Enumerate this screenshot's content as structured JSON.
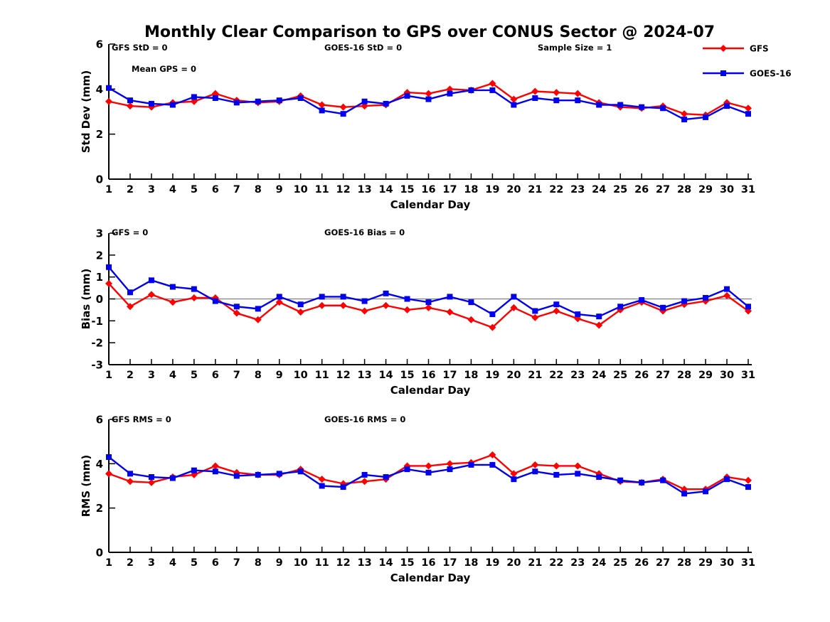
{
  "title": "Monthly Clear Comparison to GPS over CONUS Sector @ 2024-07",
  "colors": {
    "gfs": "#ff0000",
    "goes16": "#0000ee",
    "zero_line": "#808080",
    "axis": "#000000",
    "background": "#ffffff"
  },
  "legend": {
    "position": "top-right",
    "items": [
      {
        "label": "GFS",
        "color": "#ff0000",
        "marker": "diamond"
      },
      {
        "label": "GOES-16",
        "color": "#0000ee",
        "marker": "square"
      }
    ]
  },
  "chart_data": [
    {
      "type": "line",
      "name": "std-dev",
      "ylabel": "Std Dev (mm)",
      "xlabel": "Calendar Day",
      "ylim": [
        0,
        6
      ],
      "yticks": [
        0,
        2,
        4,
        6
      ],
      "grid": false,
      "zero_line": false,
      "annotations": [
        "GFS StD = 0",
        "GOES-16 StD = 0",
        "Sample Size = 1",
        "Mean GPS = 0"
      ],
      "x": [
        1,
        2,
        3,
        4,
        5,
        6,
        7,
        8,
        9,
        10,
        11,
        12,
        13,
        14,
        15,
        16,
        17,
        18,
        19,
        20,
        21,
        22,
        23,
        24,
        25,
        26,
        27,
        28,
        29,
        30,
        31
      ],
      "series": [
        {
          "name": "GFS",
          "color": "#ff0000",
          "marker": "diamond",
          "values": [
            3.45,
            3.25,
            3.2,
            3.4,
            3.45,
            3.8,
            3.5,
            3.4,
            3.45,
            3.7,
            3.3,
            3.2,
            3.25,
            3.3,
            3.85,
            3.8,
            4.0,
            3.95,
            4.25,
            3.55,
            3.9,
            3.85,
            3.8,
            3.4,
            3.2,
            3.15,
            3.25,
            2.9,
            2.85,
            3.4,
            3.15
          ]
        },
        {
          "name": "GOES-16",
          "color": "#0000ee",
          "marker": "square",
          "values": [
            4.05,
            3.5,
            3.35,
            3.3,
            3.65,
            3.6,
            3.4,
            3.45,
            3.5,
            3.6,
            3.05,
            2.9,
            3.45,
            3.35,
            3.7,
            3.55,
            3.8,
            3.95,
            3.95,
            3.3,
            3.6,
            3.5,
            3.5,
            3.3,
            3.3,
            3.2,
            3.15,
            2.65,
            2.75,
            3.25,
            2.9
          ]
        }
      ]
    },
    {
      "type": "line",
      "name": "bias",
      "ylabel": "Bias (mm)",
      "xlabel": "Calendar Day",
      "ylim": [
        -3,
        3
      ],
      "yticks": [
        -3,
        -2,
        -1,
        0,
        1,
        2,
        3
      ],
      "grid": false,
      "zero_line": true,
      "annotations": [
        "GFS = 0",
        "GOES-16 Bias = 0"
      ],
      "x": [
        1,
        2,
        3,
        4,
        5,
        6,
        7,
        8,
        9,
        10,
        11,
        12,
        13,
        14,
        15,
        16,
        17,
        18,
        19,
        20,
        21,
        22,
        23,
        24,
        25,
        26,
        27,
        28,
        29,
        30,
        31
      ],
      "series": [
        {
          "name": "GFS",
          "color": "#ff0000",
          "marker": "diamond",
          "values": [
            0.7,
            -0.35,
            0.2,
            -0.15,
            0.05,
            0.05,
            -0.65,
            -0.95,
            -0.15,
            -0.6,
            -0.3,
            -0.3,
            -0.55,
            -0.3,
            -0.5,
            -0.4,
            -0.6,
            -0.95,
            -1.3,
            -0.4,
            -0.85,
            -0.55,
            -0.9,
            -1.2,
            -0.5,
            -0.15,
            -0.55,
            -0.25,
            -0.1,
            0.15,
            -0.55
          ]
        },
        {
          "name": "GOES-16",
          "color": "#0000ee",
          "marker": "square",
          "values": [
            1.45,
            0.3,
            0.85,
            0.55,
            0.45,
            -0.1,
            -0.35,
            -0.45,
            0.1,
            -0.25,
            0.1,
            0.1,
            -0.1,
            0.25,
            0.0,
            -0.15,
            0.1,
            -0.15,
            -0.7,
            0.1,
            -0.55,
            -0.25,
            -0.7,
            -0.8,
            -0.35,
            -0.05,
            -0.4,
            -0.1,
            0.05,
            0.45,
            -0.35
          ]
        }
      ]
    },
    {
      "type": "line",
      "name": "rms",
      "ylabel": "RMS (mm)",
      "xlabel": "Calendar Day",
      "ylim": [
        0,
        6
      ],
      "yticks": [
        0,
        2,
        4,
        6
      ],
      "grid": false,
      "zero_line": false,
      "annotations": [
        "GFS RMS = 0",
        "GOES-16 RMS = 0"
      ],
      "x": [
        1,
        2,
        3,
        4,
        5,
        6,
        7,
        8,
        9,
        10,
        11,
        12,
        13,
        14,
        15,
        16,
        17,
        18,
        19,
        20,
        21,
        22,
        23,
        24,
        25,
        26,
        27,
        28,
        29,
        30,
        31
      ],
      "series": [
        {
          "name": "GFS",
          "color": "#ff0000",
          "marker": "diamond",
          "values": [
            3.55,
            3.2,
            3.15,
            3.4,
            3.5,
            3.9,
            3.6,
            3.5,
            3.5,
            3.75,
            3.3,
            3.1,
            3.2,
            3.3,
            3.9,
            3.9,
            4.0,
            4.05,
            4.4,
            3.55,
            3.95,
            3.9,
            3.9,
            3.55,
            3.2,
            3.15,
            3.3,
            2.85,
            2.85,
            3.4,
            3.25
          ]
        },
        {
          "name": "GOES-16",
          "color": "#0000ee",
          "marker": "square",
          "values": [
            4.3,
            3.55,
            3.4,
            3.35,
            3.7,
            3.65,
            3.45,
            3.5,
            3.55,
            3.65,
            3.0,
            2.95,
            3.5,
            3.4,
            3.75,
            3.6,
            3.75,
            3.95,
            3.95,
            3.3,
            3.65,
            3.5,
            3.55,
            3.4,
            3.25,
            3.15,
            3.25,
            2.65,
            2.75,
            3.3,
            2.95
          ]
        }
      ]
    }
  ]
}
